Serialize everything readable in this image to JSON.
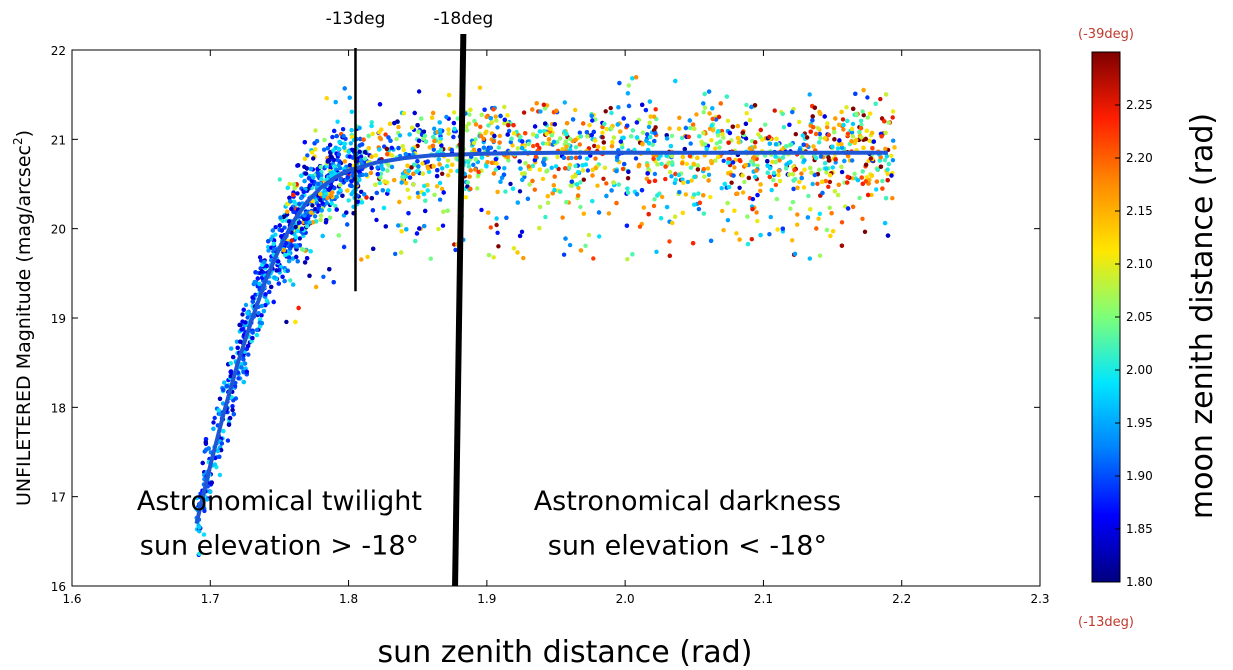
{
  "chart_data": {
    "type": "scatter",
    "title": "",
    "xlabel": "sun zenith distance (rad)",
    "ylabel": "UNFILETERED Magnitude (mag/arcsec",
    "ylabel_sup": "2",
    "ylabel_close": ")",
    "xlim": [
      1.6,
      2.3
    ],
    "ylim": [
      16,
      22
    ],
    "xticks": [
      1.6,
      1.7,
      1.8,
      1.9,
      2.0,
      2.1,
      2.2,
      2.3
    ],
    "xtick_labels": [
      "1.6",
      "1.7",
      "1.8",
      "1.9",
      "2.0",
      "2.1",
      "2.2",
      "2.3"
    ],
    "yticks": [
      16,
      17,
      18,
      19,
      20,
      21,
      22
    ],
    "ytick_labels": [
      "16",
      "17",
      "18",
      "19",
      "20",
      "21",
      "22"
    ],
    "grid": false,
    "fit_curve": {
      "x": [
        1.69,
        1.7,
        1.71,
        1.72,
        1.73,
        1.74,
        1.75,
        1.76,
        1.77,
        1.78,
        1.79,
        1.8,
        1.82,
        1.84,
        1.86,
        1.88,
        1.9,
        1.95,
        2.0,
        2.05,
        2.1,
        2.15,
        2.19
      ],
      "y": [
        16.7,
        17.35,
        17.95,
        18.5,
        18.98,
        19.42,
        19.78,
        20.08,
        20.3,
        20.46,
        20.57,
        20.65,
        20.74,
        20.79,
        20.82,
        20.83,
        20.84,
        20.85,
        20.85,
        20.85,
        20.85,
        20.85,
        20.85
      ],
      "color": "#1f56d6"
    },
    "vlines": [
      {
        "label": "-13deg",
        "x": 1.805,
        "y_from": 19.3,
        "y_to": 22.0
      },
      {
        "label": "-18deg",
        "x_bottom": 1.877,
        "x_top": 1.883,
        "y_from": 16.0,
        "y_to": 22.0
      }
    ],
    "annotations": [
      {
        "line1": "Astronomical twilight",
        "line2": "sun elevation > -18°",
        "x": 1.75,
        "y1": 16.85,
        "y2": 16.35
      },
      {
        "line1": "Astronomical darkness",
        "line2": "sun elevation < -18°",
        "x": 2.045,
        "y1": 16.85,
        "y2": 16.35
      }
    ],
    "colorbar": {
      "label": "moon zenith distance (rad)",
      "min": 1.8,
      "max": 2.3,
      "ticks": [
        "1.80",
        "1.85",
        "1.90",
        "1.95",
        "2.00",
        "2.05",
        "2.10",
        "2.15",
        "2.20",
        "2.25"
      ],
      "tick_values": [
        1.8,
        1.85,
        1.9,
        1.95,
        2.0,
        2.05,
        2.1,
        2.15,
        2.2,
        2.25
      ],
      "top_note": "(-39deg)",
      "bottom_note": "(-13deg)",
      "stops": [
        "#00007f",
        "#0000ff",
        "#0080ff",
        "#00e5ff",
        "#7dff7a",
        "#ffe600",
        "#ff8c00",
        "#ff1e00",
        "#7f0000"
      ]
    },
    "scatter_regions": [
      {
        "segment": "rising twilight",
        "x_range": [
          1.69,
          1.8
        ],
        "spread": 0.45,
        "color_bias": "blue"
      },
      {
        "segment": "plateau",
        "x_range": [
          1.8,
          2.19
        ],
        "y_center": 20.85,
        "spread": 0.55,
        "color_bias": "mixed"
      }
    ]
  }
}
